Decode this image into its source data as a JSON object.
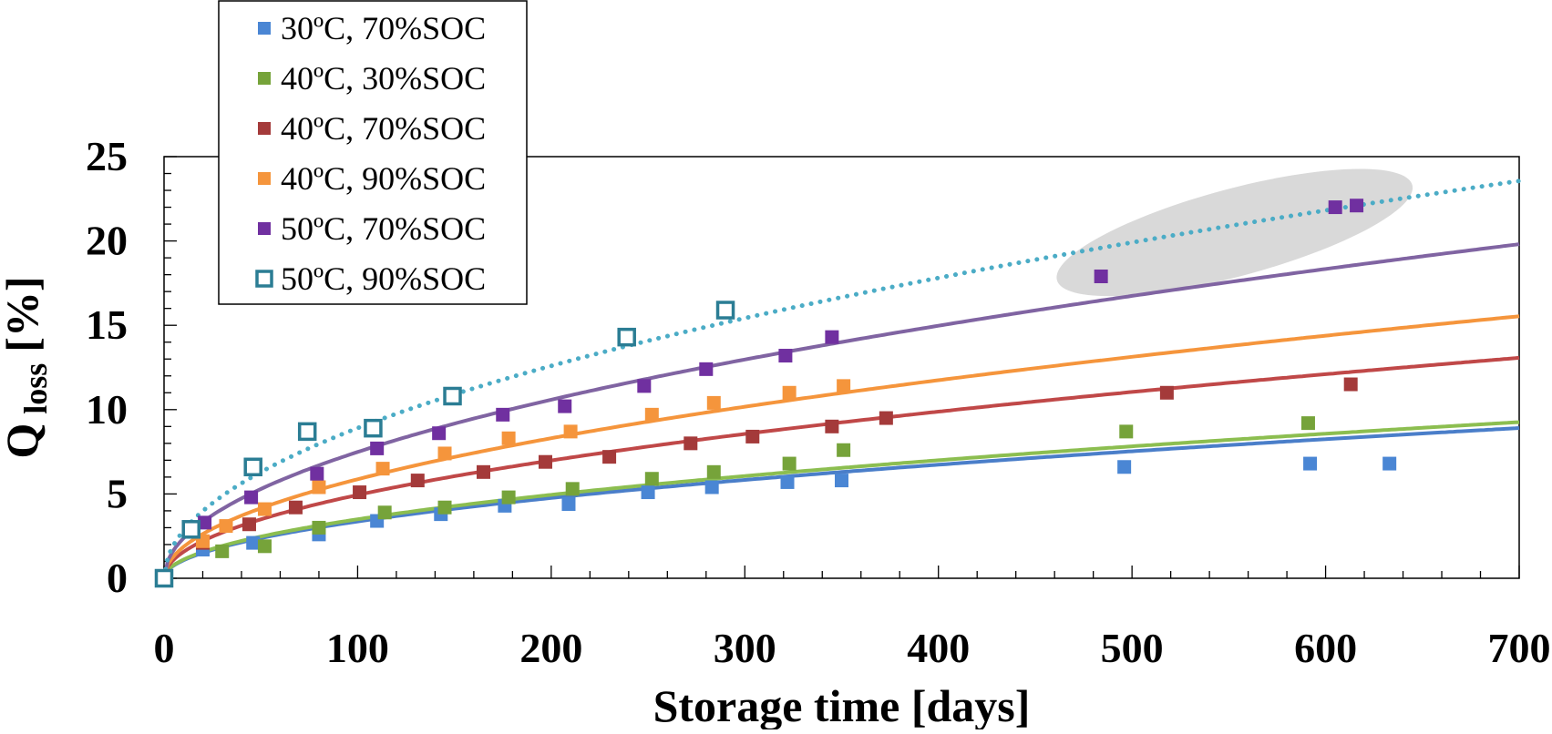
{
  "chart_data": {
    "type": "scatter",
    "xlabel": "Storage time [days]",
    "ylabel_main": "Q",
    "ylabel_sub": "loss",
    "ylabel_unit": "[%]",
    "xlim": [
      0,
      700
    ],
    "ylim": [
      0,
      25
    ],
    "xticks": [
      0,
      100,
      200,
      300,
      400,
      500,
      600,
      700
    ],
    "yticks": [
      0,
      5,
      10,
      15,
      20,
      25
    ],
    "x_tick_labels": [
      "0",
      "100",
      "200",
      "300",
      "400",
      "500",
      "600",
      "700"
    ],
    "y_tick_labels": [
      "0",
      "5",
      "10",
      "15",
      "20",
      "25"
    ],
    "grid": false,
    "legend_position": "top-left",
    "highlight_ellipse": {
      "fill": "#d9d9d9",
      "x_range": [
        458,
        648
      ],
      "y_range": [
        17,
        24
      ]
    },
    "series": [
      {
        "name": "30ºC, 70%SOC",
        "color": "#4a86d4",
        "marker": "filled-square",
        "x": [
          0,
          20,
          46,
          80,
          110,
          143,
          176,
          209,
          250,
          283,
          322,
          350,
          496,
          592,
          633
        ],
        "y": [
          0,
          1.7,
          2.1,
          2.6,
          3.4,
          3.8,
          4.3,
          4.4,
          5.1,
          5.4,
          5.7,
          5.8,
          6.6,
          6.8,
          6.8
        ],
        "fit": {
          "a": 0.3367,
          "b": 0.5,
          "style": "solid",
          "color": "#4a7ec9"
        }
      },
      {
        "name": "40ºC, 30%SOC",
        "color": "#76a33a",
        "marker": "filled-square",
        "x": [
          0,
          30,
          52,
          80,
          114,
          145,
          178,
          211,
          252,
          284,
          323,
          351,
          497,
          591
        ],
        "y": [
          0,
          1.6,
          1.9,
          3.0,
          3.9,
          4.2,
          4.8,
          5.3,
          5.9,
          6.3,
          6.8,
          7.6,
          8.7,
          9.2
        ],
        "fit": {
          "a": 0.3499,
          "b": 0.5,
          "style": "solid",
          "color": "#8cbe50"
        }
      },
      {
        "name": "40ºC, 70%SOC",
        "color": "#a43a3a",
        "marker": "filled-square",
        "x": [
          0,
          20,
          44,
          68,
          101,
          131,
          165,
          197,
          230,
          272,
          304,
          345,
          373,
          518,
          613
        ],
        "y": [
          0,
          2.1,
          3.2,
          4.2,
          5.1,
          5.8,
          6.3,
          6.9,
          7.2,
          8.0,
          8.4,
          9.0,
          9.5,
          11.0,
          11.5
        ],
        "fit": {
          "a": 0.494,
          "b": 0.5,
          "style": "solid",
          "color": "#c04848"
        }
      },
      {
        "name": "40ºC, 90%SOC",
        "color": "#f5953c",
        "marker": "filled-square",
        "x": [
          0,
          20,
          32,
          52,
          80,
          113,
          145,
          178,
          210,
          252,
          284,
          323,
          351
        ],
        "y": [
          0,
          2.2,
          3.1,
          4.1,
          5.4,
          6.5,
          7.4,
          8.3,
          8.7,
          9.7,
          10.4,
          11.0,
          11.4
        ],
        "fit": {
          "a": 0.5872,
          "b": 0.5,
          "style": "solid",
          "color": "#f5953c"
        }
      },
      {
        "name": "50ºC, 70%SOC",
        "color": "#7030a0",
        "marker": "filled-square",
        "x": [
          0,
          21,
          45,
          79,
          110,
          142,
          175,
          207,
          248,
          280,
          321,
          345,
          484,
          605,
          616
        ],
        "y": [
          0,
          3.3,
          4.8,
          6.2,
          7.7,
          8.6,
          9.7,
          10.2,
          11.4,
          12.4,
          13.2,
          14.3,
          17.9,
          22.0,
          22.1
        ],
        "fit": {
          "a": 0.7487,
          "b": 0.5,
          "style": "solid",
          "color": "#8064a2"
        }
      },
      {
        "name": "50ºC, 90%SOC",
        "color": "#2b7d94",
        "marker": "open-square",
        "x": [
          0,
          14,
          46,
          74,
          108,
          149,
          239,
          290
        ],
        "y": [
          0,
          2.9,
          6.6,
          8.7,
          8.9,
          10.8,
          14.3,
          15.9
        ],
        "fit": {
          "a": 0.8905,
          "b": 0.5,
          "style": "dotted",
          "color": "#4bacc6"
        }
      }
    ]
  }
}
